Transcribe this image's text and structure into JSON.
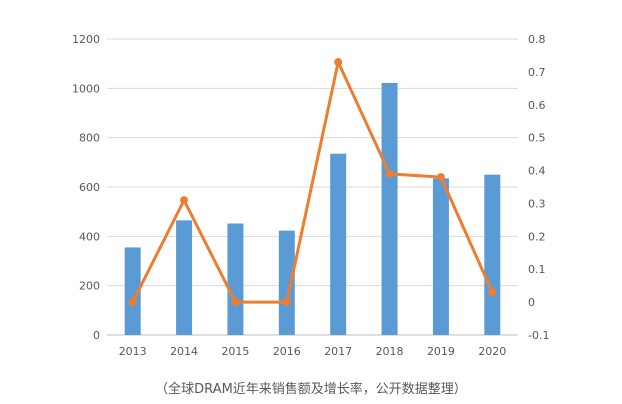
{
  "chart_data": {
    "type": "bar",
    "categories": [
      "2013",
      "2014",
      "2015",
      "2016",
      "2017",
      "2018",
      "2019",
      "2020"
    ],
    "series": [
      {
        "kind": "bar",
        "axis": "left",
        "values": [
          355,
          465,
          452,
          423,
          735,
          1022,
          635,
          650
        ],
        "color": "#5B9BD5"
      },
      {
        "kind": "line",
        "axis": "right",
        "values": [
          0.0,
          0.31,
          0.0,
          0.0,
          0.73,
          0.39,
          0.38,
          0.03
        ],
        "color": "#ED7D31"
      }
    ],
    "y_left": {
      "min": 0,
      "max": 1200,
      "ticks": [
        "0",
        "200",
        "400",
        "600",
        "800",
        "1000",
        "1200"
      ]
    },
    "y_right": {
      "min": -0.1,
      "max": 0.8,
      "ticks": [
        "-0.1",
        "0",
        "0.1",
        "0.2",
        "0.3",
        "0.4",
        "0.5",
        "0.6",
        "0.7",
        "0.8"
      ]
    },
    "grid": true,
    "legend": "none"
  },
  "caption": "（全球DRAM近年来销售额及增长率，公开数据整理）"
}
